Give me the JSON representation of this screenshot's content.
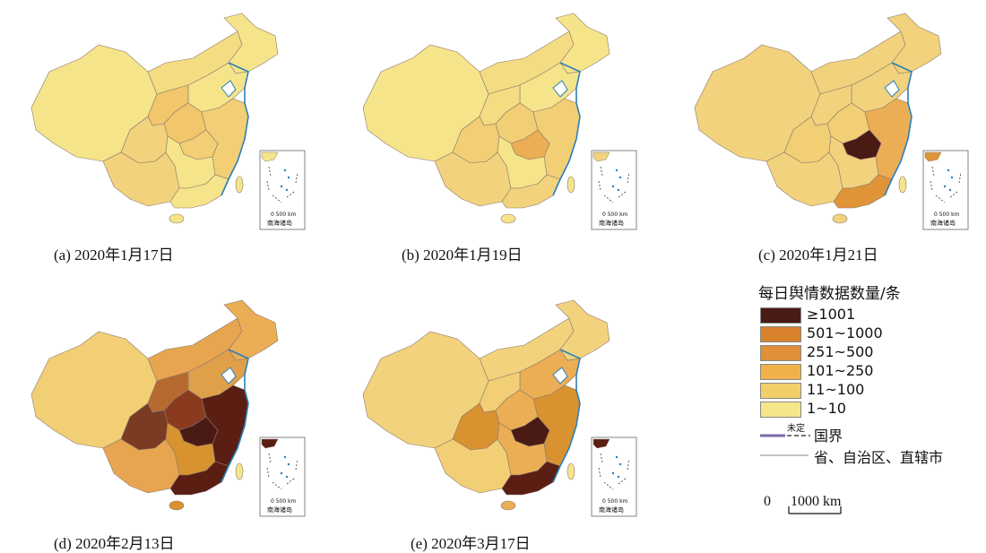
{
  "panels": [
    {
      "id": "a",
      "caption": "(a) 2020年1月17日",
      "regions": {
        "west": "#f6e48a",
        "north": "#f6e48a",
        "northeast": "#f6e48a",
        "center": "#f2c66a",
        "east": "#f2cf75",
        "south": "#f6e48a",
        "southwest": "#f2d27c",
        "hubei": "#f2cf75",
        "guangdong": "#f6e48a",
        "sichuan": "#f2d27c",
        "nmg": "#f4dc82",
        "gansu": "#f2c66a"
      }
    },
    {
      "id": "b",
      "caption": "(b) 2020年1月19日",
      "regions": {
        "west": "#f6e48a",
        "north": "#f6e48a",
        "northeast": "#f6e48a",
        "center": "#f2cf75",
        "east": "#f2cf75",
        "south": "#f6e48a",
        "southwest": "#f2d27c",
        "hubei": "#ebae55",
        "guangdong": "#f2d27c",
        "sichuan": "#f2cf75",
        "nmg": "#f4dc82",
        "gansu": "#f4dc82"
      }
    },
    {
      "id": "c",
      "caption": "(c) 2020年1月21日",
      "regions": {
        "west": "#f2d27c",
        "north": "#f2d27c",
        "northeast": "#f2d27c",
        "center": "#f2cf75",
        "east": "#ebae55",
        "south": "#f2d27c",
        "southwest": "#f2d27c",
        "hubei": "#4a1a14",
        "guangdong": "#e09438",
        "sichuan": "#f2cf75",
        "nmg": "#f2d27c",
        "gansu": "#f2d27c"
      }
    },
    {
      "id": "d",
      "caption": "(d) 2020年2月13日",
      "regions": {
        "west": "#f2cf75",
        "north": "#e0a04a",
        "northeast": "#ebae55",
        "center": "#8a3a1e",
        "east": "#5a1e12",
        "south": "#d8922f",
        "southwest": "#e7a550",
        "hubei": "#4a1a14",
        "guangdong": "#5a1e12",
        "sichuan": "#7b3a22",
        "nmg": "#e7a550",
        "gansu": "#b76a30"
      }
    },
    {
      "id": "e",
      "caption": "(e) 2020年3月17日",
      "regions": {
        "west": "#f2d27c",
        "north": "#ebae55",
        "northeast": "#f2d27c",
        "center": "#ebae55",
        "east": "#d8922f",
        "south": "#ebae55",
        "southwest": "#f2cf75",
        "hubei": "#4a1a14",
        "guangdong": "#5a1e12",
        "sichuan": "#d8922f",
        "nmg": "#f2d27c",
        "gansu": "#f2cf75"
      }
    }
  ],
  "inset": {
    "scale_label": "0  500 km",
    "title": "南海诸岛"
  },
  "legend": {
    "title": "每日舆情数据数量/条",
    "classes": [
      {
        "label": "≥1001",
        "color": "#4a1a14"
      },
      {
        "label": "501~1000",
        "color": "#d8822c"
      },
      {
        "label": "251~500",
        "color": "#e0903a"
      },
      {
        "label": "101~250",
        "color": "#f2b04a"
      },
      {
        "label": "11~100",
        "color": "#f2cf6a"
      },
      {
        "label": "1~10",
        "color": "#f6e68a"
      }
    ],
    "undetermined": "未定",
    "national_border": "国界",
    "provincial_border": "省、自治区、直辖市",
    "scale_zero": "0",
    "scale_label": "1000 km"
  },
  "colors": {
    "sea": "#ffffff",
    "coast": "#2a7fb8",
    "border": "#8a7a70",
    "national": "#7a6aa8"
  }
}
